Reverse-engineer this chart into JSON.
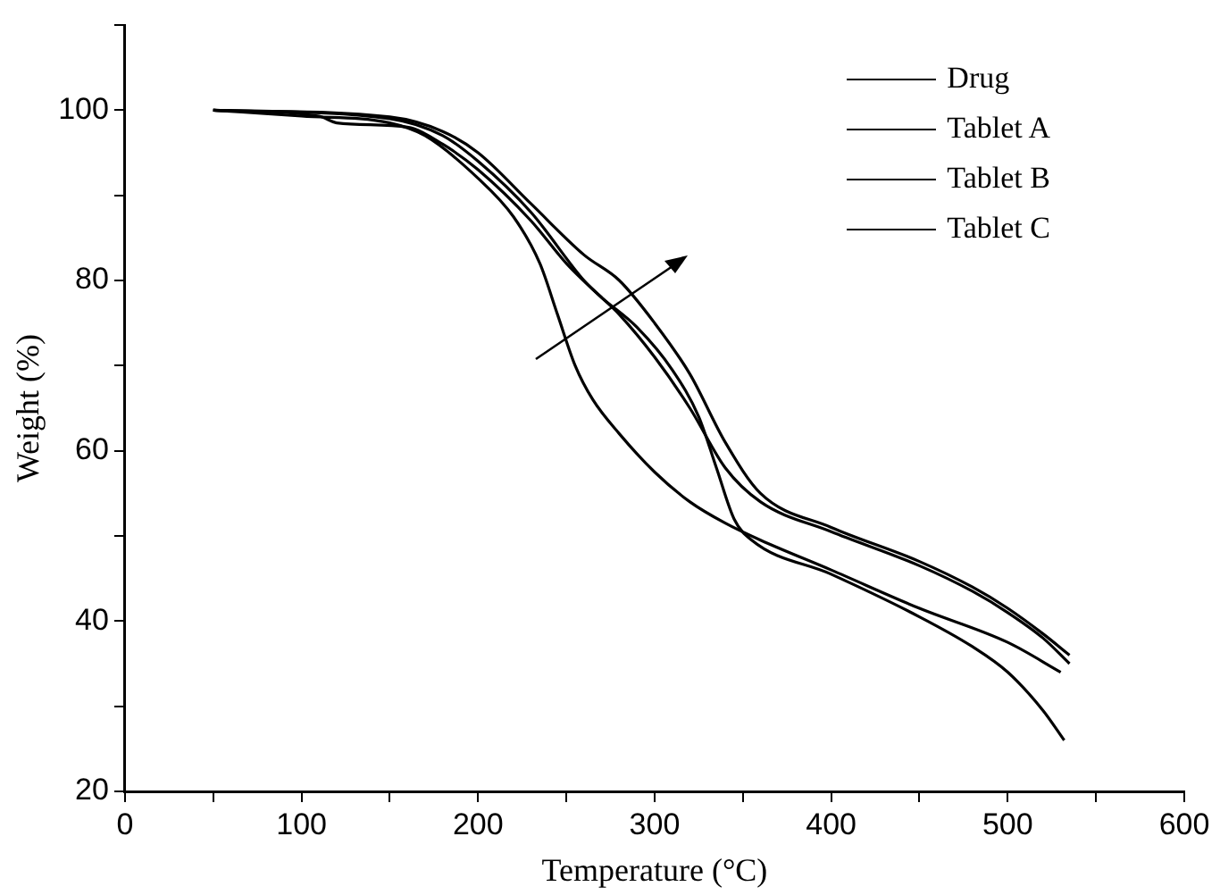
{
  "chart_data": {
    "type": "line",
    "xlabel": "Temperature (°C)",
    "ylabel": "Weight (%)",
    "xlim": [
      0,
      600
    ],
    "xticks": [
      0,
      {
        "value": 50,
        "label": null
      },
      100,
      {
        "value": 150,
        "label": null
      },
      200,
      {
        "value": 250,
        "label": null
      },
      300,
      {
        "value": 350,
        "label": null
      },
      400,
      {
        "value": 450,
        "label": null
      },
      500,
      {
        "value": 550,
        "label": null
      },
      600
    ],
    "ylim": [
      20,
      110
    ],
    "yticks": [
      20,
      {
        "value": 30,
        "label": null
      },
      40,
      {
        "value": 50,
        "label": null
      },
      60,
      {
        "value": 70,
        "label": null
      },
      80,
      {
        "value": 90,
        "label": null
      },
      100,
      {
        "value": 110,
        "label": null
      }
    ],
    "grid": false,
    "legend": "top right",
    "marker": "none",
    "line_style": "solid",
    "series": [
      {
        "name": "Drug",
        "color": "#000000",
        "x": [
          50,
          110,
          120,
          160,
          180,
          200,
          230,
          250,
          270,
          290,
          310,
          325,
          335,
          345,
          355,
          400,
          450,
          480,
          500,
          520,
          532
        ],
        "values": [
          100,
          99.3,
          98.5,
          98,
          96,
          93,
          87,
          82,
          78,
          74.5,
          69.5,
          64,
          58,
          52,
          49.5,
          45.5,
          40.5,
          37,
          34,
          29.5,
          26
        ]
      },
      {
        "name": "Tablet A",
        "color": "#000000",
        "x": [
          50,
          100,
          150,
          170,
          200,
          220,
          235,
          245,
          255,
          265,
          280,
          300,
          320,
          340,
          360,
          400,
          450,
          500,
          530
        ],
        "values": [
          100,
          99.3,
          98.5,
          97,
          92,
          87.5,
          82,
          76,
          70,
          66,
          62,
          57.5,
          54,
          51.5,
          49.5,
          46,
          41.5,
          37.5,
          34
        ]
      },
      {
        "name": "Tablet B",
        "color": "#000000",
        "x": [
          50,
          150,
          180,
          200,
          230,
          260,
          280,
          300,
          320,
          340,
          360,
          400,
          450,
          480,
          500,
          520,
          535
        ],
        "values": [
          100,
          99,
          97,
          94,
          88,
          80,
          76,
          71,
          65,
          58,
          54,
          50.5,
          46.5,
          43.5,
          41,
          38,
          35
        ]
      },
      {
        "name": "Tablet C",
        "color": "#000000",
        "x": [
          50,
          150,
          180,
          200,
          230,
          260,
          280,
          300,
          320,
          340,
          360,
          400,
          450,
          480,
          500,
          520,
          535
        ],
        "values": [
          100,
          99.2,
          97.5,
          95,
          89,
          83,
          80,
          75,
          69,
          61,
          55,
          51,
          47,
          44,
          41.5,
          38.5,
          36
        ]
      }
    ]
  }
}
